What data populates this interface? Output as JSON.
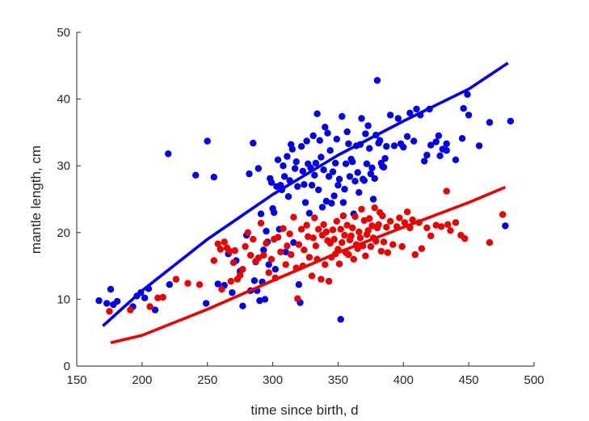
{
  "chart_data": {
    "type": "scatter",
    "title": "",
    "xlabel": "time since birth, d",
    "ylabel": "mantle length, cm",
    "xlim": [
      150,
      500
    ],
    "ylim": [
      0,
      50
    ],
    "xticks": [
      150,
      200,
      250,
      300,
      350,
      400,
      450,
      500
    ],
    "yticks": [
      0,
      10,
      20,
      30,
      40,
      50
    ],
    "grid": false,
    "series": [
      {
        "name": "blue",
        "color": "#0000ee",
        "points": [
          [
            167,
            9.8
          ],
          [
            173,
            9.4
          ],
          [
            176,
            11.5
          ],
          [
            178,
            9.2
          ],
          [
            181,
            9.7
          ],
          [
            193,
            8.9
          ],
          [
            196,
            10.5
          ],
          [
            199,
            11.0
          ],
          [
            202,
            10.2
          ],
          [
            205,
            11.6
          ],
          [
            210,
            8.4
          ],
          [
            220,
            31.8
          ],
          [
            221,
            12.2
          ],
          [
            241,
            28.6
          ],
          [
            249,
            9.4
          ],
          [
            250,
            33.7
          ],
          [
            255,
            28.3
          ],
          [
            258,
            12.3
          ],
          [
            263,
            12.1
          ],
          [
            266,
            16.8
          ],
          [
            269,
            11.0
          ],
          [
            272,
            15.8
          ],
          [
            275,
            14.2
          ],
          [
            277,
            9.0
          ],
          [
            280,
            19.6
          ],
          [
            282,
            28.8
          ],
          [
            283,
            11.3
          ],
          [
            285,
            33.4
          ],
          [
            286,
            12.8
          ],
          [
            287,
            15.6
          ],
          [
            288,
            11.3
          ],
          [
            289,
            29.6
          ],
          [
            290,
            9.8
          ],
          [
            291,
            22.8
          ],
          [
            292,
            12.6
          ],
          [
            293,
            17.4
          ],
          [
            294,
            10.0
          ],
          [
            295,
            20.2
          ],
          [
            296,
            18.6
          ],
          [
            297,
            15.2
          ],
          [
            298,
            28.1
          ],
          [
            299,
            27.5
          ],
          [
            300,
            23.6
          ],
          [
            301,
            23.0
          ],
          [
            302,
            14.5
          ],
          [
            303,
            26.9
          ],
          [
            304,
            30.9
          ],
          [
            305,
            20.5
          ],
          [
            306,
            27.1
          ],
          [
            307,
            26.4
          ],
          [
            308,
            30.0
          ],
          [
            309,
            28.4
          ],
          [
            310,
            17.1
          ],
          [
            311,
            31.4
          ],
          [
            312,
            25.4
          ],
          [
            313,
            27.8
          ],
          [
            314,
            33.2
          ],
          [
            315,
            32.5
          ],
          [
            316,
            18.5
          ],
          [
            317,
            29.6
          ],
          [
            318,
            30.6
          ],
          [
            319,
            26.9
          ],
          [
            320,
            12.2
          ],
          [
            321,
            9.5
          ],
          [
            322,
            32.9
          ],
          [
            323,
            29.2
          ],
          [
            324,
            27.2
          ],
          [
            325,
            24.5
          ],
          [
            326,
            33.7
          ],
          [
            327,
            30.3
          ],
          [
            328,
            22.9
          ],
          [
            329,
            29.7
          ],
          [
            330,
            27.1
          ],
          [
            331,
            34.5
          ],
          [
            332,
            28.6
          ],
          [
            333,
            30.4
          ],
          [
            334,
            37.8
          ],
          [
            335,
            26.4
          ],
          [
            336,
            33.8
          ],
          [
            337,
            31.3
          ],
          [
            338,
            23.8
          ],
          [
            339,
            29.4
          ],
          [
            340,
            35.8
          ],
          [
            341,
            24.7
          ],
          [
            342,
            34.9
          ],
          [
            343,
            28.4
          ],
          [
            344,
            32.3
          ],
          [
            345,
            24.4
          ],
          [
            346,
            29.1
          ],
          [
            347,
            25.5
          ],
          [
            348,
            30.4
          ],
          [
            349,
            34.0
          ],
          [
            350,
            27.1
          ],
          [
            351,
            28.0
          ],
          [
            352,
            7.0
          ],
          [
            353,
            37.4
          ],
          [
            354,
            24.5
          ],
          [
            355,
            26.5
          ],
          [
            356,
            30.3
          ],
          [
            357,
            35.1
          ],
          [
            358,
            33.3
          ],
          [
            359,
            28.4
          ],
          [
            360,
            31.0
          ],
          [
            361,
            30.6
          ],
          [
            362,
            22.8
          ],
          [
            363,
            27.7
          ],
          [
            364,
            33.0
          ],
          [
            365,
            29.0
          ],
          [
            366,
            26.0
          ],
          [
            367,
            33.2
          ],
          [
            368,
            37.1
          ],
          [
            369,
            28.0
          ],
          [
            370,
            27.8
          ],
          [
            371,
            34.8
          ],
          [
            372,
            30.3
          ],
          [
            373,
            36.0
          ],
          [
            374,
            32.6
          ],
          [
            375,
            28.8
          ],
          [
            376,
            29.7
          ],
          [
            377,
            25.0
          ],
          [
            378,
            28.1
          ],
          [
            379,
            34.6
          ],
          [
            380,
            42.8
          ],
          [
            381,
            33.4
          ],
          [
            382,
            33.8
          ],
          [
            383,
            30.4
          ],
          [
            384,
            29.9
          ],
          [
            385,
            29.8
          ],
          [
            386,
            31.1
          ],
          [
            387,
            32.9
          ],
          [
            390,
            37.6
          ],
          [
            393,
            33.0
          ],
          [
            396,
            37.1
          ],
          [
            398,
            33.3
          ],
          [
            400,
            32.8
          ],
          [
            403,
            34.4
          ],
          [
            405,
            37.9
          ],
          [
            408,
            33.7
          ],
          [
            410,
            38.5
          ],
          [
            413,
            37.6
          ],
          [
            416,
            30.7
          ],
          [
            418,
            31.6
          ],
          [
            420,
            38.5
          ],
          [
            421,
            33.1
          ],
          [
            425,
            33.6
          ],
          [
            427,
            34.5
          ],
          [
            428,
            31.5
          ],
          [
            430,
            32.5
          ],
          [
            433,
            32.3
          ],
          [
            433,
            33.3
          ],
          [
            440,
            30.9
          ],
          [
            445,
            34.1
          ],
          [
            446,
            38.6
          ],
          [
            449,
            40.7
          ],
          [
            450,
            37.6
          ],
          [
            458,
            33.0
          ],
          [
            466,
            36.5
          ],
          [
            478,
            21.0
          ],
          [
            482,
            36.7
          ]
        ],
        "fit": [
          [
            170,
            6.0
          ],
          [
            200,
            11.3
          ],
          [
            250,
            19.0
          ],
          [
            300,
            25.7
          ],
          [
            350,
            31.6
          ],
          [
            400,
            36.7
          ],
          [
            450,
            41.5
          ],
          [
            480,
            45.4
          ]
        ]
      },
      {
        "name": "red",
        "color": "#ee0000",
        "points": [
          [
            175,
            8.2
          ],
          [
            191,
            8.4
          ],
          [
            206,
            8.9
          ],
          [
            212,
            10.2
          ],
          [
            216,
            10.3
          ],
          [
            226,
            13.0
          ],
          [
            235,
            12.4
          ],
          [
            244,
            12.2
          ],
          [
            255,
            15.8
          ],
          [
            258,
            18.3
          ],
          [
            260,
            17.5
          ],
          [
            261,
            11.5
          ],
          [
            263,
            18.6
          ],
          [
            265,
            17.7
          ],
          [
            267,
            17.2
          ],
          [
            268,
            12.7
          ],
          [
            270,
            15.5
          ],
          [
            271,
            17.3
          ],
          [
            273,
            13.0
          ],
          [
            275,
            13.6
          ],
          [
            277,
            14.5
          ],
          [
            279,
            17.9
          ],
          [
            281,
            20.0
          ],
          [
            283,
            16.6
          ],
          [
            285,
            19.0
          ],
          [
            287,
            15.7
          ],
          [
            289,
            16.2
          ],
          [
            291,
            21.4
          ],
          [
            293,
            16.6
          ],
          [
            295,
            18.4
          ],
          [
            297,
            14.0
          ],
          [
            299,
            16.0
          ],
          [
            301,
            19.0
          ],
          [
            302,
            13.2
          ],
          [
            304,
            19.3
          ],
          [
            306,
            17.1
          ],
          [
            308,
            20.6
          ],
          [
            310,
            15.2
          ],
          [
            311,
            18.0
          ],
          [
            313,
            19.8
          ],
          [
            314,
            16.7
          ],
          [
            316,
            22.3
          ],
          [
            318,
            14.7
          ],
          [
            319,
            10.1
          ],
          [
            320,
            18.2
          ],
          [
            322,
            20.5
          ],
          [
            323,
            15.0
          ],
          [
            324,
            17.4
          ],
          [
            326,
            21.1
          ],
          [
            327,
            19.4
          ],
          [
            328,
            16.3
          ],
          [
            330,
            13.5
          ],
          [
            331,
            19.2
          ],
          [
            332,
            22.2
          ],
          [
            333,
            18.0
          ],
          [
            334,
            16.0
          ],
          [
            335,
            20.5
          ],
          [
            337,
            13.0
          ],
          [
            338,
            19.6
          ],
          [
            339,
            21.2
          ],
          [
            340,
            15.2
          ],
          [
            341,
            20.1
          ],
          [
            342,
            18.8
          ],
          [
            343,
            12.7
          ],
          [
            344,
            18.4
          ],
          [
            345,
            16.3
          ],
          [
            346,
            20.4
          ],
          [
            347,
            19.0
          ],
          [
            348,
            16.8
          ],
          [
            349,
            21.7
          ],
          [
            350,
            17.5
          ],
          [
            351,
            15.3
          ],
          [
            352,
            20.5
          ],
          [
            353,
            18.5
          ],
          [
            354,
            22.5
          ],
          [
            355,
            19.6
          ],
          [
            356,
            17.0
          ],
          [
            357,
            21.1
          ],
          [
            358,
            16.7
          ],
          [
            359,
            18.9
          ],
          [
            360,
            19.5
          ],
          [
            361,
            20.7
          ],
          [
            362,
            16.0
          ],
          [
            363,
            22.4
          ],
          [
            364,
            18.2
          ],
          [
            365,
            17.6
          ],
          [
            366,
            20.1
          ],
          [
            367,
            19.2
          ],
          [
            368,
            23.5
          ],
          [
            369,
            18.0
          ],
          [
            370,
            21.8
          ],
          [
            371,
            16.5
          ],
          [
            372,
            19.7
          ],
          [
            373,
            20.3
          ],
          [
            374,
            22.1
          ],
          [
            375,
            17.9
          ],
          [
            376,
            21.0
          ],
          [
            377,
            19.2
          ],
          [
            378,
            23.7
          ],
          [
            379,
            18.7
          ],
          [
            380,
            20.7
          ],
          [
            381,
            21.2
          ],
          [
            382,
            23.0
          ],
          [
            383,
            17.2
          ],
          [
            384,
            22.5
          ],
          [
            385,
            18.6
          ],
          [
            387,
            20.8
          ],
          [
            388,
            17.0
          ],
          [
            390,
            21.7
          ],
          [
            392,
            18.2
          ],
          [
            395,
            20.9
          ],
          [
            397,
            22.2
          ],
          [
            399,
            17.9
          ],
          [
            401,
            21.5
          ],
          [
            403,
            23.1
          ],
          [
            405,
            20.7
          ],
          [
            407,
            21.9
          ],
          [
            409,
            16.7
          ],
          [
            412,
            21.5
          ],
          [
            414,
            17.6
          ],
          [
            418,
            20.7
          ],
          [
            421,
            19.5
          ],
          [
            425,
            21.1
          ],
          [
            429,
            20.9
          ],
          [
            433,
            26.2
          ],
          [
            434,
            21.2
          ],
          [
            436,
            20.3
          ],
          [
            440,
            21.5
          ],
          [
            444,
            19.6
          ],
          [
            447,
            19.1
          ],
          [
            466,
            18.5
          ],
          [
            476,
            22.7
          ]
        ],
        "fit": [
          [
            176,
            3.5
          ],
          [
            200,
            4.6
          ],
          [
            250,
            8.5
          ],
          [
            300,
            12.8
          ],
          [
            350,
            17.0
          ],
          [
            400,
            20.8
          ],
          [
            450,
            24.5
          ],
          [
            478,
            26.8
          ]
        ]
      }
    ]
  }
}
